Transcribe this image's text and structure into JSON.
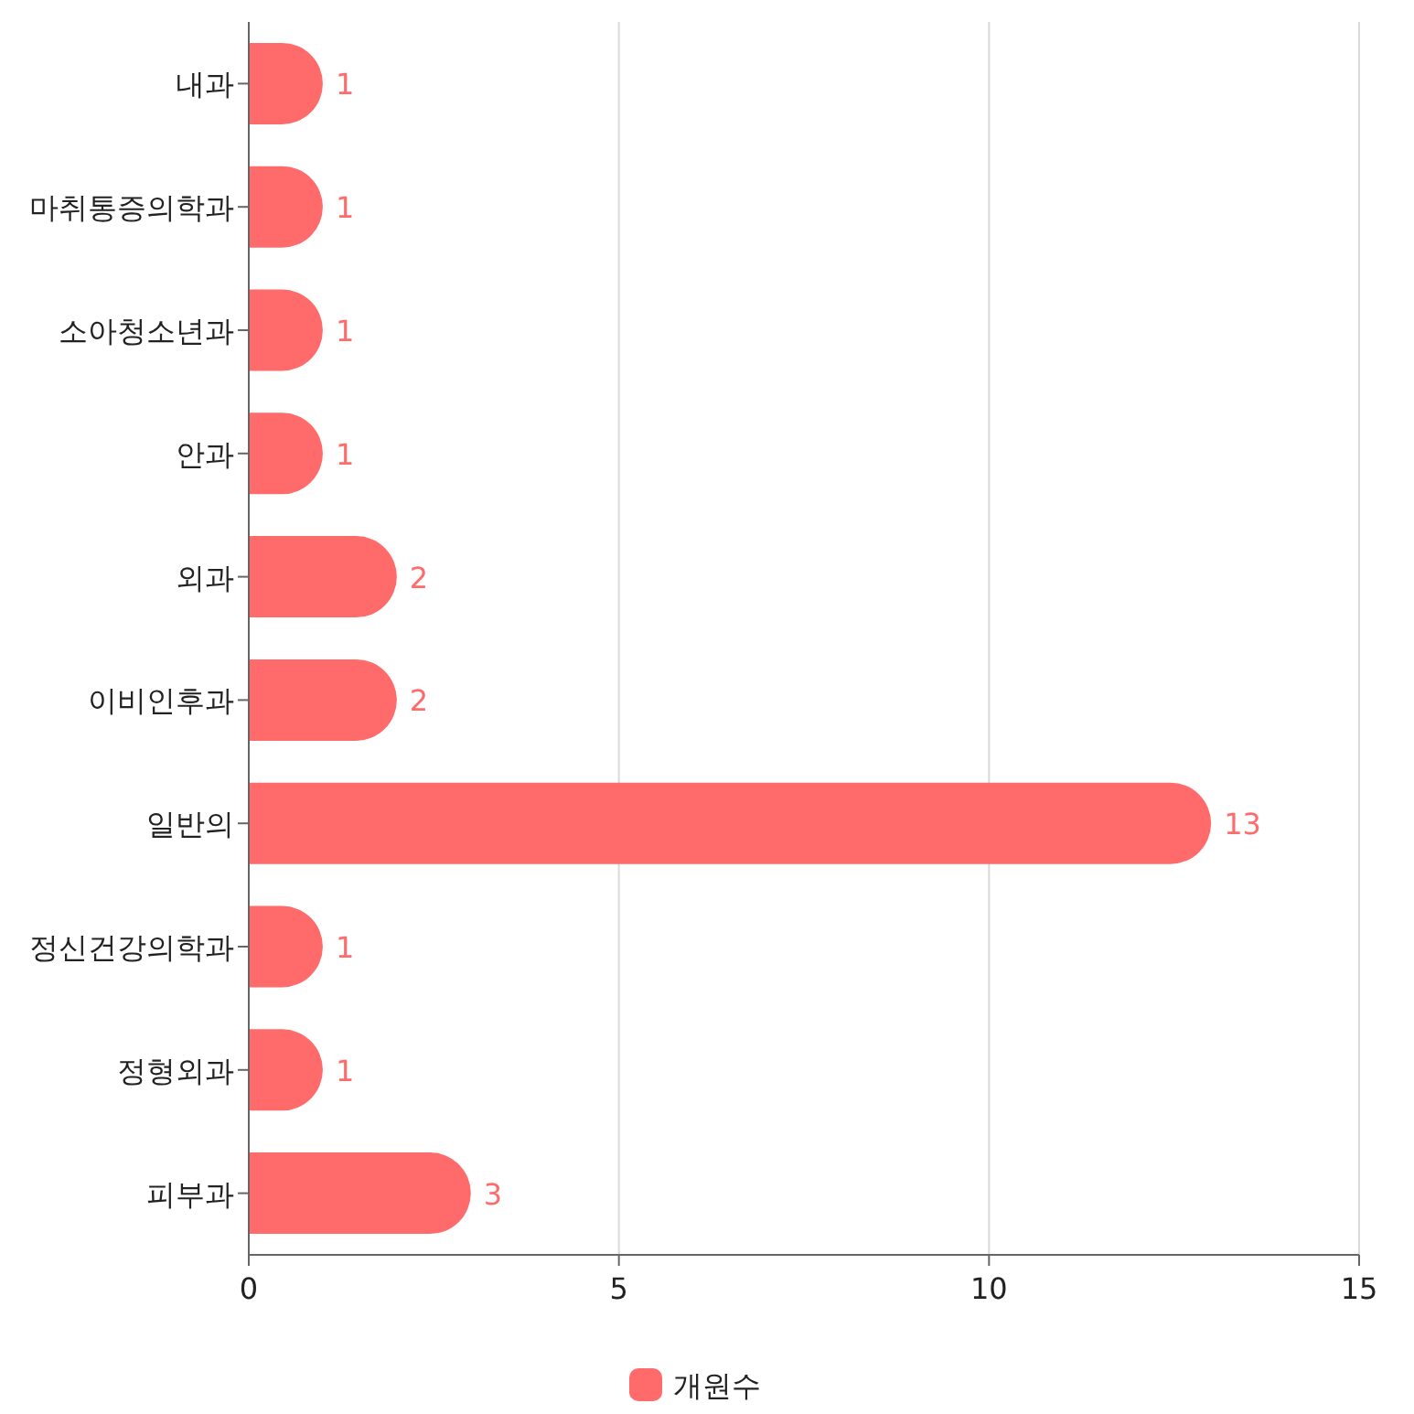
{
  "chart_data": {
    "type": "bar",
    "orientation": "horizontal",
    "categories": [
      "내과",
      "마취통증의학과",
      "소아청소년과",
      "안과",
      "외과",
      "이비인후과",
      "일반의",
      "정신건강의학과",
      "정형외과",
      "피부과"
    ],
    "series": [
      {
        "name": "개원수",
        "color": "#ff6b6b",
        "values": [
          1,
          1,
          1,
          1,
          2,
          2,
          13,
          1,
          1,
          3
        ]
      }
    ],
    "xlim": [
      0,
      15
    ],
    "xticks": [
      0,
      5,
      10,
      15
    ],
    "grid": "x",
    "legend": "bottom",
    "data_labels": true
  }
}
